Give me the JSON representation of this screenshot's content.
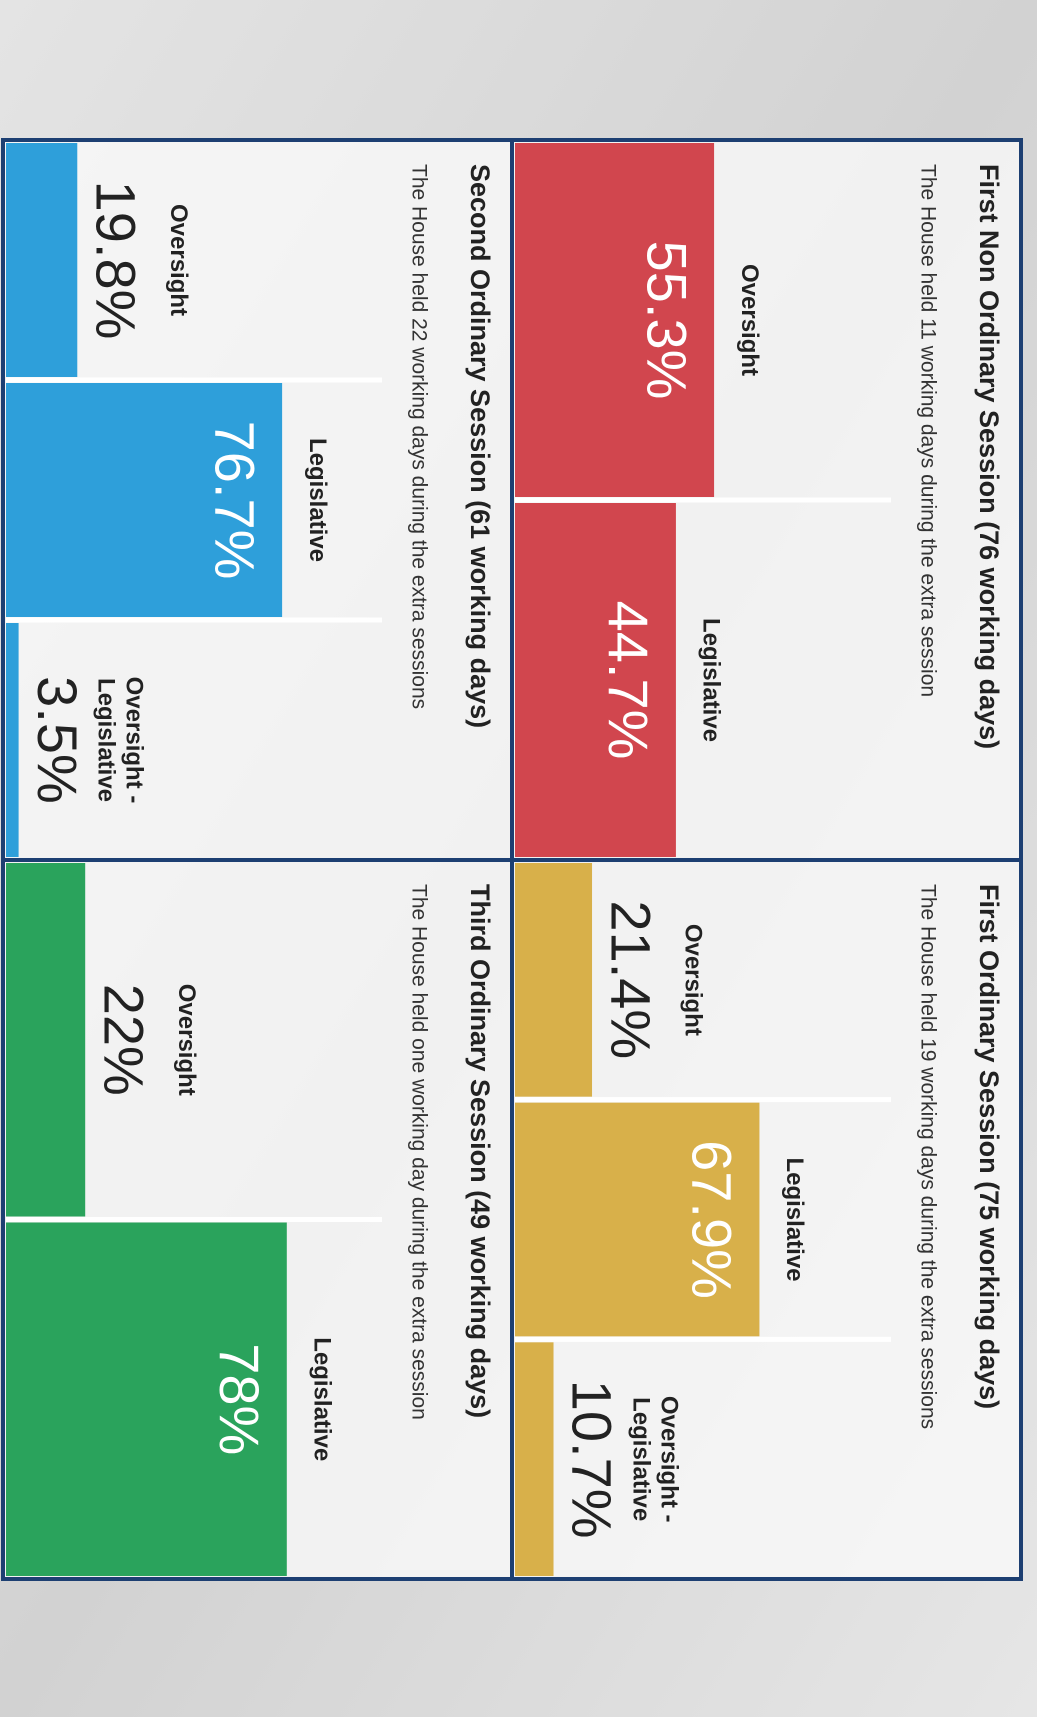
{
  "chart_data": [
    {
      "type": "bar",
      "title": "First Non Ordinary Session (76 working days)",
      "subtitle": "The House held 11 working days during the extra session",
      "color": "#d1464e",
      "categories": [
        "Oversight",
        "Legislative"
      ],
      "values": [
        55.3,
        44.7
      ],
      "value_labels": [
        "55.3%",
        "44.7%"
      ],
      "ylim": [
        0,
        100
      ]
    },
    {
      "type": "bar",
      "title": "First Ordinary Session (75 working days)",
      "subtitle": "The House held 19 working days during the extra sessions",
      "color": "#d8b04a",
      "categories": [
        "Oversight",
        "Legislative",
        "Oversight - Legislative"
      ],
      "values": [
        21.4,
        67.9,
        10.7
      ],
      "value_labels": [
        "21.4%",
        "67.9%",
        "10.7%"
      ],
      "ylim": [
        0,
        100
      ]
    },
    {
      "type": "bar",
      "title": "Second Ordinary Session (61 working days)",
      "subtitle": "The House held 22 working days during the extra sessions",
      "color": "#2e9fda",
      "categories": [
        "Oversight",
        "Legislative",
        "Oversight - Legislative"
      ],
      "values": [
        19.8,
        76.7,
        3.5
      ],
      "value_labels": [
        "19.8%",
        "76.7%",
        "3.5%"
      ],
      "ylim": [
        0,
        100
      ]
    },
    {
      "type": "bar",
      "title": "Third Ordinary Session (49 working days)",
      "subtitle": "The House held one working day during the extra session",
      "color": "#2aa35c",
      "categories": [
        "Oversight",
        "Legislative"
      ],
      "values": [
        22,
        78
      ],
      "value_labels": [
        "22%",
        "78%"
      ],
      "ylim": [
        0,
        100
      ]
    }
  ]
}
